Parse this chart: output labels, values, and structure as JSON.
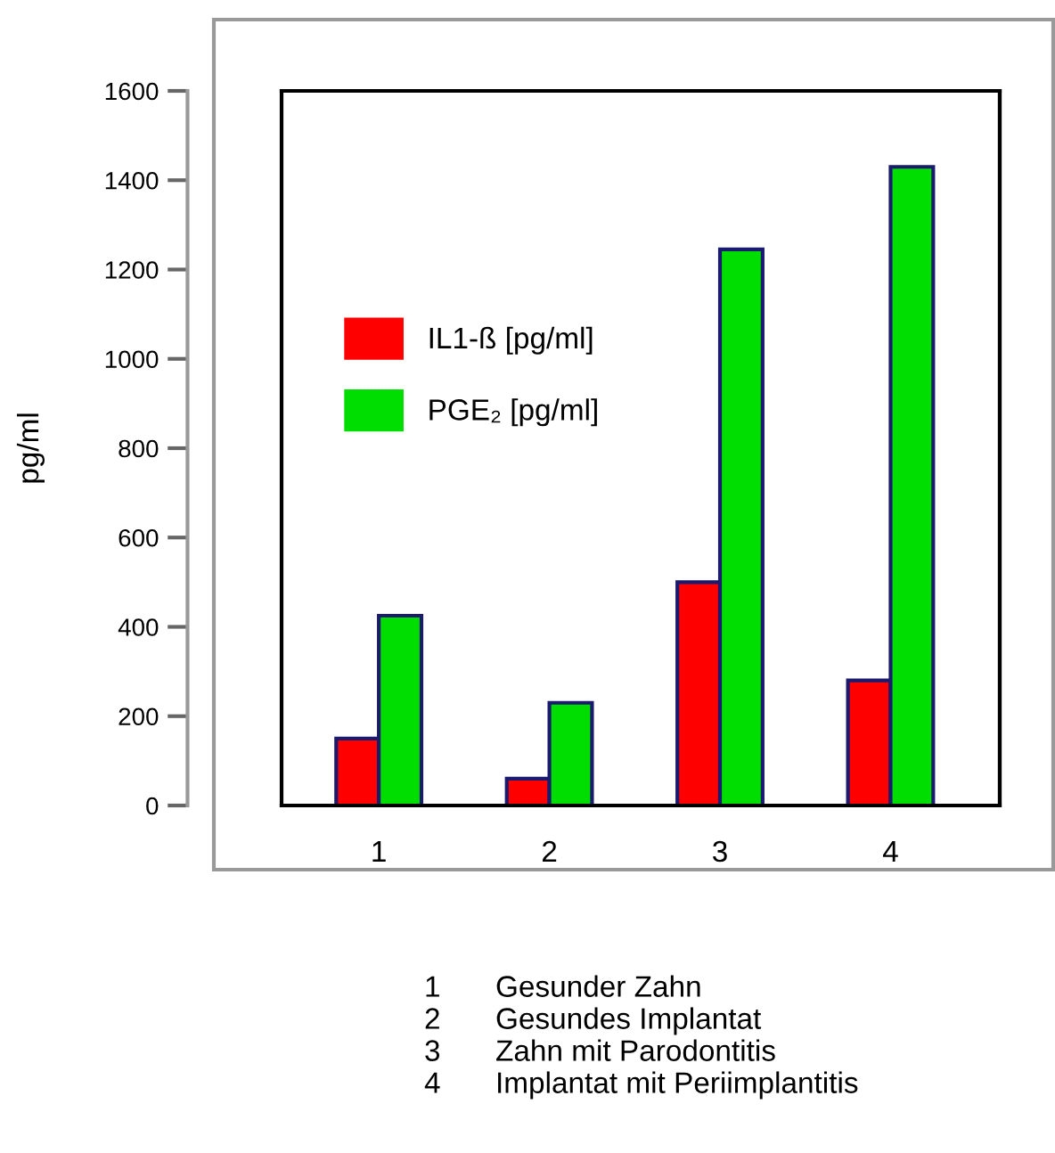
{
  "chart_data": {
    "type": "bar",
    "ylabel": "pg/ml",
    "categories": [
      "1",
      "2",
      "3",
      "4"
    ],
    "series": [
      {
        "name": "IL1-ß [pg/ml]",
        "color": "#ff0000",
        "values": [
          150,
          60,
          500,
          280
        ]
      },
      {
        "name": "PGE₂ [pg/ml]",
        "color": "#00dd00",
        "values": [
          425,
          230,
          1245,
          1430
        ]
      }
    ],
    "ylim": [
      0,
      1600
    ],
    "yticks": [
      0,
      200,
      400,
      600,
      800,
      1000,
      1200,
      1400,
      1600
    ],
    "grid": false,
    "legend": "top left",
    "annotations": [
      "1\tGesunder Zahn",
      "2\tGesundes Implantat",
      "3\tZahn mit Parodontitis",
      "4\tImplantat mit Periimplantitis"
    ]
  }
}
